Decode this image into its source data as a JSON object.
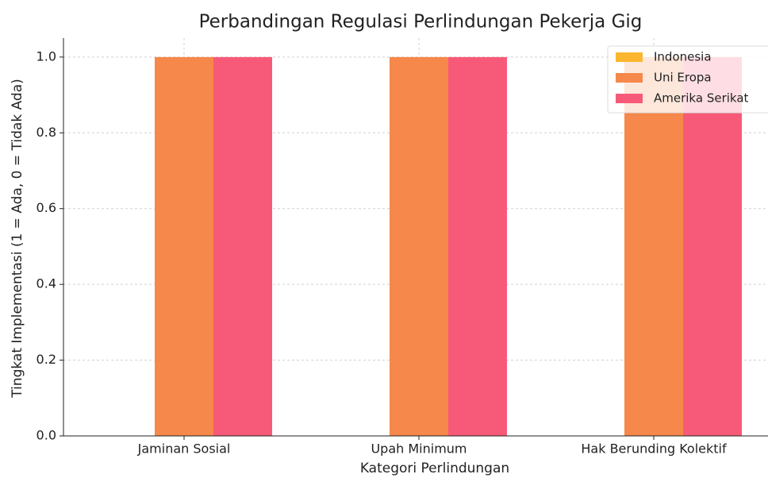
{
  "chart_data": {
    "type": "bar",
    "title": "Perbandingan Regulasi Perlindungan Pekerja Gig",
    "xlabel": "Kategori Perlindungan",
    "ylabel": "Tingkat Implementasi (1 = Ada, 0 = Tidak Ada)",
    "categories": [
      "Jaminan Sosial",
      "Upah Minimum",
      "Hak Berunding Kolektif"
    ],
    "series": [
      {
        "name": "Indonesia",
        "color": "#fbb62f",
        "values": [
          0,
          0,
          0
        ]
      },
      {
        "name": "Uni Eropa",
        "color": "#f5884a",
        "values": [
          1,
          1,
          1
        ]
      },
      {
        "name": "Amerika Serikat",
        "color": "#f75a78",
        "values": [
          1,
          1,
          1
        ]
      }
    ],
    "ylim": [
      0,
      1.05
    ],
    "yticks": [
      {
        "value": 0,
        "label": "0.0"
      },
      {
        "value": 0.2,
        "label": "0.2"
      },
      {
        "value": 0.4,
        "label": "0.4"
      },
      {
        "value": 0.6,
        "label": "0.6"
      },
      {
        "value": 0.8,
        "label": "0.8"
      },
      {
        "value": 1,
        "label": "1.0"
      }
    ],
    "grid": true,
    "legend": "upper right"
  }
}
